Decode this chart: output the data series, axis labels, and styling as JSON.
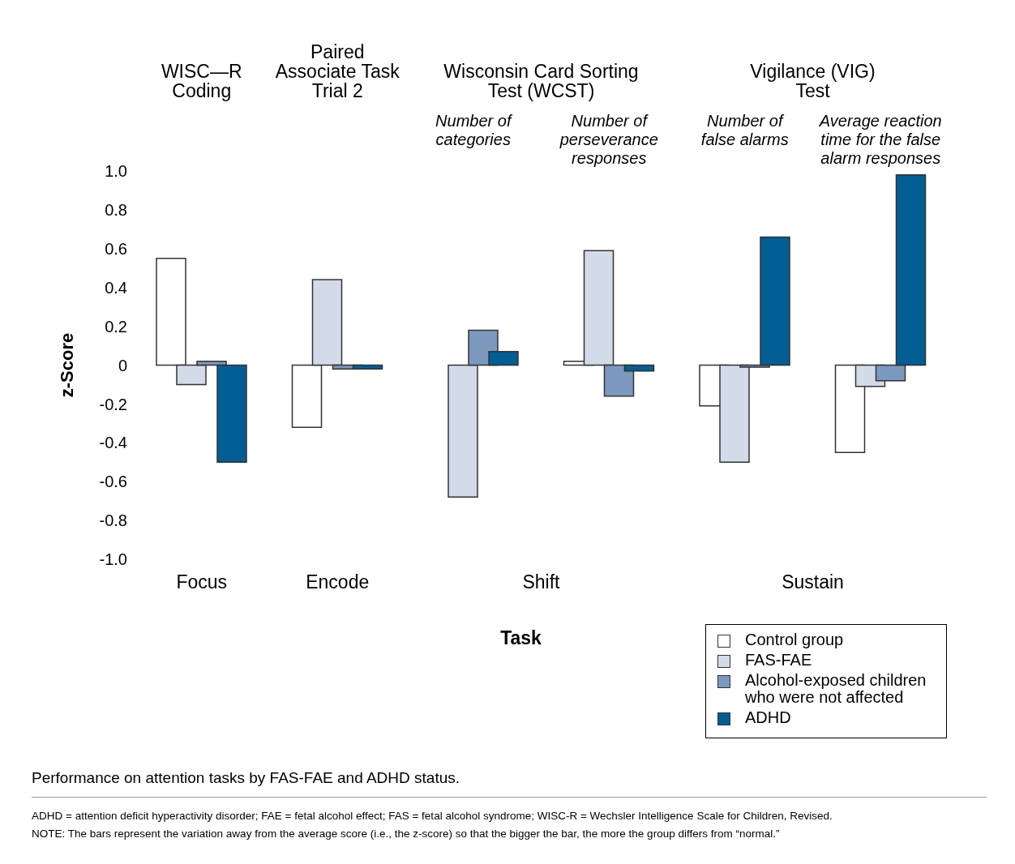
{
  "chart_data": {
    "type": "bar",
    "ylabel": "z-Score",
    "xlabel": "Task",
    "categories": [
      null,
      null,
      "Number of categories",
      "Number of perseverance responses",
      "Number of false alarms",
      "Average reaction time for the false alarm responses"
    ],
    "series": [
      {
        "name": "Control group",
        "color": "#ffffff",
        "values": [
          0.55,
          -0.32,
          0,
          0.02,
          -0.21,
          -0.45
        ]
      },
      {
        "name": "FAS-FAE",
        "color": "#d3dae8",
        "values": [
          -0.1,
          0.44,
          -0.68,
          0.59,
          -0.5,
          -0.11
        ]
      },
      {
        "name": "Alcohol-exposed children who were not affected",
        "color": "#7c98bf",
        "values": [
          0.02,
          -0.02,
          0.18,
          -0.16,
          -0.01,
          -0.08
        ]
      },
      {
        "name": "ADHD",
        "color": "#025d93",
        "values": [
          -0.5,
          -0.02,
          0.07,
          -0.03,
          0.66,
          0.98
        ]
      }
    ],
    "ylim": [
      -1,
      1
    ],
    "yticks": [
      {
        "value": 1,
        "label": "1.0"
      },
      {
        "value": 0.8,
        "label": "0.8"
      },
      {
        "value": 0.6,
        "label": "0.6"
      },
      {
        "value": 0.4,
        "label": "0.4"
      },
      {
        "value": 0.2,
        "label": "0.2"
      },
      0,
      {
        "value": -0.2,
        "label": "-0.2"
      },
      {
        "value": -0.4,
        "label": "-0.4"
      },
      {
        "value": -0.6,
        "label": "-0.6"
      },
      {
        "value": -0.8,
        "label": "-0.8"
      },
      {
        "value": -1,
        "label": "-1.0"
      }
    ],
    "legend": "bottom right",
    "grid": false,
    "annotations": [
      "WISC—R Coding",
      "Paired Associate Task Trial 2",
      "Wisconsin Card Sorting Test (WCST)",
      "Vigilance (VIG) Test",
      "Focus",
      "Encode",
      "Shift",
      "Sustain",
      "Performance on attention tasks by FAS-FAE and ADHD status.",
      "ADHD = attention deficit hyperactivity disorder; FAE = fetal alcohol effect; FAS = fetal alcohol syndrome; WISC-R = Wechsler Intelligence Scale for Children, Revised.",
      "NOTE: The bars represent the variation away from the average score (i.e., the z-score) so that the bigger the bar, the more the group differs from “normal.”"
    ]
  }
}
